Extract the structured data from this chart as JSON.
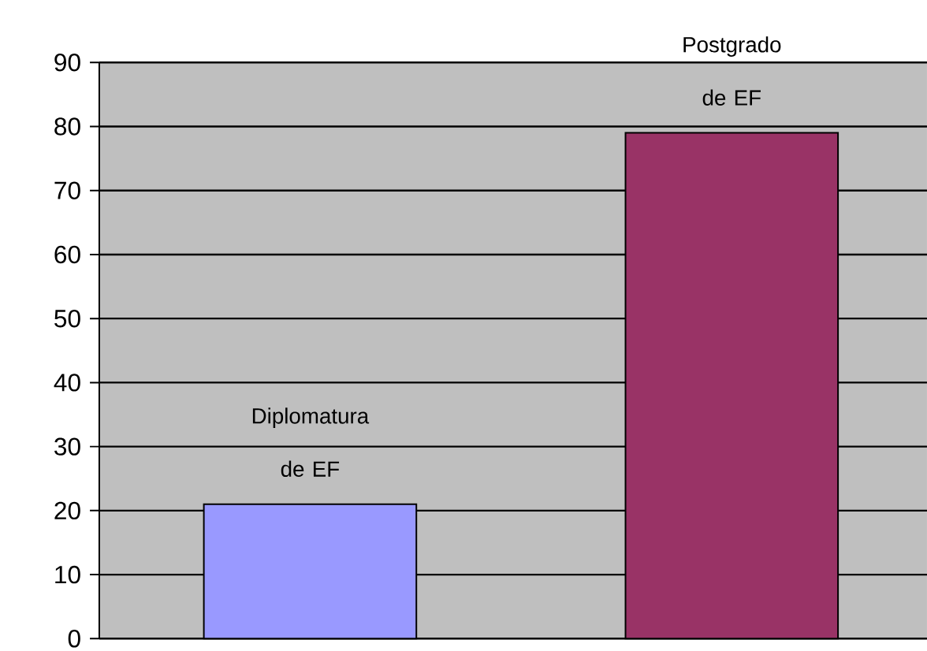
{
  "chart_data": {
    "type": "bar",
    "categories": [
      "Diplomatura de EF",
      "Postgrado de EF"
    ],
    "values": [
      21,
      79
    ],
    "colors": [
      "#9999ff",
      "#993366"
    ],
    "ylim": [
      0,
      90
    ],
    "yticks": [
      0,
      10,
      20,
      30,
      40,
      50,
      60,
      70,
      80,
      90
    ],
    "grid": "y"
  }
}
